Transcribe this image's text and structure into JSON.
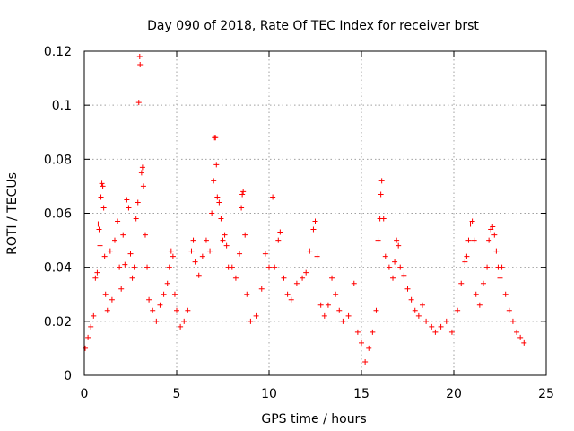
{
  "chart_data": {
    "type": "scatter",
    "title": "Day 090 of 2018, Rate Of TEC Index for receiver brst",
    "xlabel": "GPS time / hours",
    "ylabel": "ROTI / TECUs",
    "xlim": [
      0,
      25
    ],
    "ylim": [
      0,
      0.12
    ],
    "x_ticks": [
      0,
      5,
      10,
      15,
      20,
      25
    ],
    "x_tick_labels": [
      "0",
      "5",
      "10",
      "15",
      "20",
      "25"
    ],
    "y_ticks": [
      0,
      0.02,
      0.04,
      0.06,
      0.08,
      0.1,
      0.12
    ],
    "y_tick_labels": [
      "0",
      "0.02",
      "0.04",
      "0.06",
      "0.08",
      "0.1",
      "0.12"
    ],
    "grid": true,
    "marker": "+",
    "marker_color": "#ff0000",
    "series": [
      {
        "points": [
          [
            0.05,
            0.01
          ],
          [
            0.2,
            0.014
          ],
          [
            0.35,
            0.018
          ],
          [
            0.5,
            0.022
          ],
          [
            0.6,
            0.036
          ],
          [
            0.7,
            0.038
          ],
          [
            0.75,
            0.056
          ],
          [
            0.8,
            0.054
          ],
          [
            0.85,
            0.048
          ],
          [
            0.9,
            0.066
          ],
          [
            0.95,
            0.071
          ],
          [
            1.0,
            0.07
          ],
          [
            1.05,
            0.062
          ],
          [
            1.1,
            0.044
          ],
          [
            1.15,
            0.03
          ],
          [
            1.25,
            0.024
          ],
          [
            1.4,
            0.046
          ],
          [
            1.5,
            0.028
          ],
          [
            1.65,
            0.05
          ],
          [
            1.8,
            0.057
          ],
          [
            1.9,
            0.04
          ],
          [
            2.0,
            0.032
          ],
          [
            2.1,
            0.052
          ],
          [
            2.2,
            0.041
          ],
          [
            2.3,
            0.065
          ],
          [
            2.4,
            0.062
          ],
          [
            2.5,
            0.045
          ],
          [
            2.6,
            0.036
          ],
          [
            2.7,
            0.04
          ],
          [
            2.8,
            0.058
          ],
          [
            2.9,
            0.064
          ],
          [
            2.95,
            0.101
          ],
          [
            3.0,
            0.118
          ],
          [
            3.02,
            0.115
          ],
          [
            3.1,
            0.075
          ],
          [
            3.15,
            0.077
          ],
          [
            3.2,
            0.07
          ],
          [
            3.3,
            0.052
          ],
          [
            3.4,
            0.04
          ],
          [
            3.5,
            0.028
          ],
          [
            3.7,
            0.024
          ],
          [
            3.9,
            0.02
          ],
          [
            4.1,
            0.026
          ],
          [
            4.3,
            0.03
          ],
          [
            4.5,
            0.034
          ],
          [
            4.6,
            0.04
          ],
          [
            4.7,
            0.046
          ],
          [
            4.8,
            0.044
          ],
          [
            4.9,
            0.03
          ],
          [
            5.0,
            0.024
          ],
          [
            5.2,
            0.018
          ],
          [
            5.4,
            0.02
          ],
          [
            5.6,
            0.024
          ],
          [
            5.8,
            0.046
          ],
          [
            5.9,
            0.05
          ],
          [
            6.0,
            0.042
          ],
          [
            6.2,
            0.037
          ],
          [
            6.4,
            0.044
          ],
          [
            6.6,
            0.05
          ],
          [
            6.8,
            0.046
          ],
          [
            6.9,
            0.06
          ],
          [
            7.0,
            0.072
          ],
          [
            7.05,
            0.088
          ],
          [
            7.1,
            0.088
          ],
          [
            7.15,
            0.078
          ],
          [
            7.2,
            0.066
          ],
          [
            7.3,
            0.064
          ],
          [
            7.4,
            0.058
          ],
          [
            7.5,
            0.05
          ],
          [
            7.6,
            0.052
          ],
          [
            7.7,
            0.048
          ],
          [
            7.8,
            0.04
          ],
          [
            8.0,
            0.04
          ],
          [
            8.2,
            0.036
          ],
          [
            8.4,
            0.045
          ],
          [
            8.5,
            0.062
          ],
          [
            8.55,
            0.067
          ],
          [
            8.6,
            0.068
          ],
          [
            8.7,
            0.052
          ],
          [
            8.8,
            0.03
          ],
          [
            9.0,
            0.02
          ],
          [
            9.3,
            0.022
          ],
          [
            9.6,
            0.032
          ],
          [
            9.8,
            0.045
          ],
          [
            10.0,
            0.04
          ],
          [
            10.2,
            0.066
          ],
          [
            10.3,
            0.04
          ],
          [
            10.5,
            0.05
          ],
          [
            10.6,
            0.053
          ],
          [
            10.8,
            0.036
          ],
          [
            11.0,
            0.03
          ],
          [
            11.2,
            0.028
          ],
          [
            11.5,
            0.034
          ],
          [
            11.8,
            0.036
          ],
          [
            12.0,
            0.038
          ],
          [
            12.2,
            0.046
          ],
          [
            12.4,
            0.054
          ],
          [
            12.5,
            0.057
          ],
          [
            12.6,
            0.044
          ],
          [
            12.8,
            0.026
          ],
          [
            13.0,
            0.022
          ],
          [
            13.2,
            0.026
          ],
          [
            13.4,
            0.036
          ],
          [
            13.6,
            0.03
          ],
          [
            13.8,
            0.024
          ],
          [
            14.0,
            0.02
          ],
          [
            14.3,
            0.022
          ],
          [
            14.6,
            0.034
          ],
          [
            14.8,
            0.016
          ],
          [
            15.0,
            0.012
          ],
          [
            15.2,
            0.005
          ],
          [
            15.4,
            0.01
          ],
          [
            15.6,
            0.016
          ],
          [
            15.8,
            0.024
          ],
          [
            15.9,
            0.05
          ],
          [
            16.0,
            0.058
          ],
          [
            16.05,
            0.067
          ],
          [
            16.1,
            0.072
          ],
          [
            16.2,
            0.058
          ],
          [
            16.3,
            0.044
          ],
          [
            16.5,
            0.04
          ],
          [
            16.7,
            0.036
          ],
          [
            16.8,
            0.042
          ],
          [
            16.9,
            0.05
          ],
          [
            17.0,
            0.048
          ],
          [
            17.1,
            0.04
          ],
          [
            17.3,
            0.037
          ],
          [
            17.5,
            0.032
          ],
          [
            17.7,
            0.028
          ],
          [
            17.9,
            0.024
          ],
          [
            18.1,
            0.022
          ],
          [
            18.3,
            0.026
          ],
          [
            18.5,
            0.02
          ],
          [
            18.8,
            0.018
          ],
          [
            19.0,
            0.016
          ],
          [
            19.3,
            0.018
          ],
          [
            19.6,
            0.02
          ],
          [
            19.9,
            0.016
          ],
          [
            20.2,
            0.024
          ],
          [
            20.4,
            0.034
          ],
          [
            20.6,
            0.042
          ],
          [
            20.7,
            0.044
          ],
          [
            20.8,
            0.05
          ],
          [
            20.9,
            0.056
          ],
          [
            21.0,
            0.057
          ],
          [
            21.1,
            0.05
          ],
          [
            21.2,
            0.03
          ],
          [
            21.4,
            0.026
          ],
          [
            21.6,
            0.034
          ],
          [
            21.8,
            0.04
          ],
          [
            21.9,
            0.05
          ],
          [
            22.0,
            0.054
          ],
          [
            22.1,
            0.055
          ],
          [
            22.2,
            0.052
          ],
          [
            22.3,
            0.046
          ],
          [
            22.4,
            0.04
          ],
          [
            22.5,
            0.036
          ],
          [
            22.6,
            0.04
          ],
          [
            22.8,
            0.03
          ],
          [
            23.0,
            0.024
          ],
          [
            23.2,
            0.02
          ],
          [
            23.4,
            0.016
          ],
          [
            23.6,
            0.014
          ],
          [
            23.8,
            0.012
          ]
        ]
      }
    ],
    "annotations": []
  }
}
